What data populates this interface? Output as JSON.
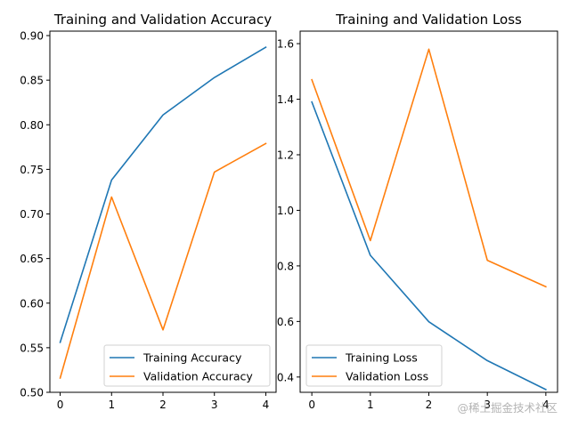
{
  "chart_data": [
    {
      "type": "line",
      "title": "Training and Validation Accuracy",
      "xlabel": "",
      "ylabel": "",
      "x": [
        0,
        1,
        2,
        3,
        4
      ],
      "xlim": [
        -0.2,
        4.2
      ],
      "ylim": [
        0.5,
        0.905
      ],
      "xticks": [
        0,
        1,
        2,
        3,
        4
      ],
      "yticks": [
        0.5,
        0.55,
        0.6,
        0.65,
        0.7,
        0.75,
        0.8,
        0.85,
        0.9
      ],
      "ytick_labels": [
        "0.50",
        "0.55",
        "0.60",
        "0.65",
        "0.70",
        "0.75",
        "0.80",
        "0.85",
        "0.90"
      ],
      "legend_position": "lower-right",
      "series": [
        {
          "name": "Training Accuracy",
          "color": "#1f77b4",
          "values": [
            0.556,
            0.738,
            0.811,
            0.853,
            0.887
          ]
        },
        {
          "name": "Validation Accuracy",
          "color": "#ff7f0e",
          "values": [
            0.516,
            0.719,
            0.57,
            0.747,
            0.779
          ]
        }
      ]
    },
    {
      "type": "line",
      "title": "Training and Validation Loss",
      "xlabel": "",
      "ylabel": "",
      "x": [
        0,
        1,
        2,
        3,
        4
      ],
      "xlim": [
        -0.2,
        4.2
      ],
      "ylim": [
        0.345,
        1.645
      ],
      "xticks": [
        0,
        1,
        2,
        3,
        4
      ],
      "yticks": [
        0.4,
        0.6,
        0.8,
        1.0,
        1.2,
        1.4,
        1.6
      ],
      "ytick_labels": [
        "0.4",
        "0.6",
        "0.8",
        "1.0",
        "1.2",
        "1.4",
        "1.6"
      ],
      "legend_position": "lower-left",
      "series": [
        {
          "name": "Training Loss",
          "color": "#1f77b4",
          "values": [
            1.39,
            0.838,
            0.599,
            0.459,
            0.355
          ]
        },
        {
          "name": "Validation Loss",
          "color": "#ff7f0e",
          "values": [
            1.47,
            0.891,
            1.58,
            0.82,
            0.725
          ]
        }
      ]
    }
  ],
  "watermark": "@稀土掘金技术社区"
}
